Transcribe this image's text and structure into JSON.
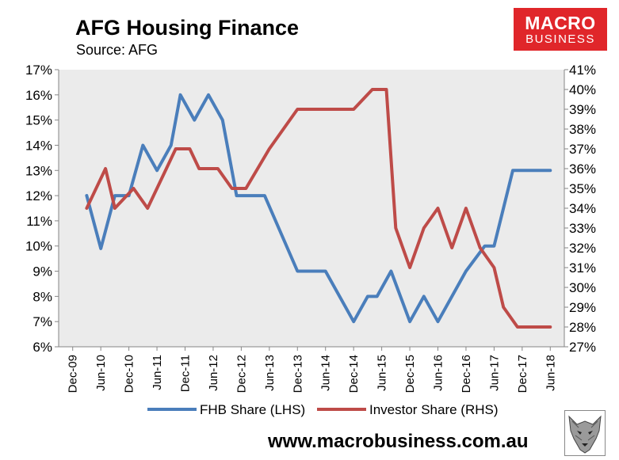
{
  "header": {
    "title": "AFG Housing Finance",
    "subtitle": "Source: AFG",
    "logo_line1": "MACRO",
    "logo_line2": "BUSINESS"
  },
  "footer": {
    "website": "www.macrobusiness.com.au"
  },
  "colors": {
    "fhb": "#4a7ebb",
    "investor": "#be4b48",
    "plot_bg": "#ebebeb",
    "logo": "#e0262a"
  },
  "chart_data": {
    "type": "line",
    "title": "AFG Housing Finance",
    "subtitle": "Source: AFG",
    "x_ticks": [
      "Dec-09",
      "Jun-10",
      "Dec-10",
      "Jun-11",
      "Dec-11",
      "Jun-12",
      "Dec-12",
      "Jun-13",
      "Dec-13",
      "Jun-14",
      "Dec-14",
      "Jun-15",
      "Dec-15",
      "Jun-16",
      "Dec-16",
      "Jun-17",
      "Dec-17",
      "Jun-18"
    ],
    "x_months": [
      "Mar-10",
      "May-10",
      "Jul-10",
      "Sep-10",
      "Nov-10",
      "Jan-11",
      "Mar-11",
      "May-11",
      "Jul-11",
      "Sep-11",
      "Nov-11",
      "Jan-12",
      "Mar-12",
      "May-12",
      "Jul-12",
      "Sep-12",
      "Nov-12",
      "Jan-13",
      "Mar-13",
      "May-13",
      "Jul-13",
      "Sep-13",
      "Nov-13",
      "Jan-14",
      "Mar-14",
      "May-14",
      "Jul-14",
      "Sep-14",
      "Nov-14",
      "Jan-15",
      "Mar-15",
      "May-15",
      "Jul-15",
      "Sep-15",
      "Nov-15",
      "Jan-16",
      "Mar-16",
      "May-16",
      "Jul-16",
      "Sep-16",
      "Nov-16",
      "Jan-17",
      "Mar-17",
      "May-17",
      "Jul-17",
      "Sep-17",
      "Nov-17",
      "Jan-18",
      "Mar-18",
      "May-18"
    ],
    "x_range": [
      "Dec-09",
      "Jun-18"
    ],
    "left_axis": {
      "min": 6,
      "max": 17,
      "step": 1,
      "unit": "%",
      "ticks": [
        "6%",
        "7%",
        "8%",
        "9%",
        "10%",
        "11%",
        "12%",
        "13%",
        "14%",
        "15%",
        "16%",
        "17%"
      ]
    },
    "right_axis": {
      "min": 27,
      "max": 41,
      "step": 1,
      "unit": "%",
      "ticks": [
        "27%",
        "28%",
        "29%",
        "30%",
        "31%",
        "32%",
        "33%",
        "34%",
        "35%",
        "36%",
        "37%",
        "38%",
        "39%",
        "40%",
        "41%"
      ]
    },
    "series": [
      {
        "name": "FHB Share (LHS)",
        "axis": "left",
        "points": [
          [
            "Mar-10",
            12
          ],
          [
            "Jun-10",
            9.9
          ],
          [
            "Sep-10",
            12
          ],
          [
            "Dec-10",
            12
          ],
          [
            "Mar-11",
            14
          ],
          [
            "Jun-11",
            13
          ],
          [
            "Sep-11",
            14
          ],
          [
            "Nov-11",
            16
          ],
          [
            "Feb-12",
            15
          ],
          [
            "May-12",
            16
          ],
          [
            "Aug-12",
            15
          ],
          [
            "Nov-12",
            12
          ],
          [
            "May-13",
            12
          ],
          [
            "Dec-13",
            9
          ],
          [
            "Jun-14",
            9
          ],
          [
            "Dec-14",
            7
          ],
          [
            "Mar-15",
            8
          ],
          [
            "May-15",
            8
          ],
          [
            "Aug-15",
            9
          ],
          [
            "Dec-15",
            7
          ],
          [
            "Mar-16",
            8
          ],
          [
            "Jun-16",
            7
          ],
          [
            "Dec-16",
            9
          ],
          [
            "Apr-17",
            10
          ],
          [
            "Jun-17",
            10
          ],
          [
            "Oct-17",
            13
          ],
          [
            "Jun-18",
            13
          ]
        ]
      },
      {
        "name": "Investor Share (RHS)",
        "axis": "right",
        "points": [
          [
            "Mar-10",
            34
          ],
          [
            "Jul-10",
            36
          ],
          [
            "Sep-10",
            34
          ],
          [
            "Jan-11",
            35
          ],
          [
            "Apr-11",
            34
          ],
          [
            "Aug-11",
            36
          ],
          [
            "Oct-11",
            37
          ],
          [
            "Jan-12",
            37
          ],
          [
            "Mar-12",
            36
          ],
          [
            "Jul-12",
            36
          ],
          [
            "Oct-12",
            35
          ],
          [
            "Jan-13",
            35
          ],
          [
            "Jun-13",
            37
          ],
          [
            "Dec-13",
            39
          ],
          [
            "Dec-14",
            39
          ],
          [
            "Apr-15",
            40
          ],
          [
            "Jul-15",
            40
          ],
          [
            "Sep-15",
            33
          ],
          [
            "Dec-15",
            31
          ],
          [
            "Mar-16",
            33
          ],
          [
            "Jun-16",
            34
          ],
          [
            "Sep-16",
            32
          ],
          [
            "Dec-16",
            34
          ],
          [
            "Mar-17",
            32
          ],
          [
            "Jun-17",
            31
          ],
          [
            "Aug-17",
            29
          ],
          [
            "Nov-17",
            28
          ],
          [
            "Jun-18",
            28
          ]
        ]
      }
    ],
    "legend": {
      "position": "bottom",
      "entries": [
        "FHB Share (LHS)",
        "Investor Share (RHS)"
      ]
    },
    "grid": false
  }
}
